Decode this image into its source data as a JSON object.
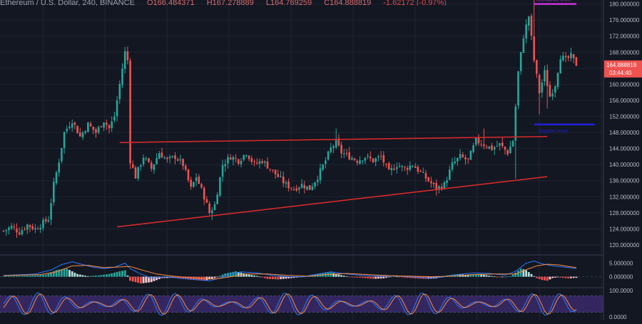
{
  "header": {
    "symbol": "Ethereum / U.S. Dollar, 240, BINANCE",
    "open": "O166.484371",
    "high": "H167.278889",
    "low": "L164.769259",
    "close": "C164.888819",
    "change": "-1.62172 (-0.97%)"
  },
  "colors": {
    "background": "#131722",
    "grid": "#1f2433",
    "candle_up": "#26a69a",
    "candle_down": "#ef5350",
    "trendline": "#d42a2a",
    "resistance": "#c832e0",
    "support": "#1f1fd6",
    "price_tag": "#ef5350",
    "macd_line": "#2979ff",
    "signal_line": "#ff8a3d",
    "stoch_k": "#2979ff",
    "stoch_d": "#ff8a3d",
    "stoch_band": "#3b2a6b"
  },
  "chart_data": {
    "type": "candlestick",
    "title": "Ethereum / U.S. Dollar, 240, BINANCE",
    "y_axis": {
      "range": [
        117.5,
        181.0
      ],
      "ticks": [
        "180.000000",
        "176.000000",
        "172.000000",
        "168.000000",
        "164.000000",
        "160.000000",
        "156.000000",
        "152.000000",
        "148.000000",
        "144.000000",
        "140.000000",
        "136.000000",
        "132.000000",
        "128.000000",
        "124.000000",
        "120.000000"
      ]
    },
    "last_price": "164.888819",
    "countdown": "03:44:40",
    "price_path": [
      [
        0,
        123.5
      ],
      [
        3,
        124.5
      ],
      [
        6,
        123.2
      ],
      [
        9,
        125.0
      ],
      [
        12,
        124.0
      ],
      [
        15,
        125.5
      ],
      [
        17,
        126.5
      ],
      [
        19,
        135
      ],
      [
        21,
        141
      ],
      [
        23,
        148
      ],
      [
        26,
        151
      ],
      [
        29,
        147
      ],
      [
        32,
        150
      ],
      [
        35,
        148
      ],
      [
        38,
        151
      ],
      [
        40,
        149
      ],
      [
        42,
        152
      ],
      [
        44,
        160
      ],
      [
        46,
        168
      ],
      [
        47,
        166
      ],
      [
        48,
        141
      ],
      [
        50,
        137
      ],
      [
        53,
        142
      ],
      [
        56,
        139
      ],
      [
        59,
        143
      ],
      [
        62,
        141
      ],
      [
        65,
        142
      ],
      [
        68,
        140
      ],
      [
        71,
        134
      ],
      [
        73,
        137
      ],
      [
        76,
        132
      ],
      [
        78,
        128
      ],
      [
        80,
        130
      ],
      [
        83,
        140
      ],
      [
        86,
        142
      ],
      [
        89,
        141
      ],
      [
        92,
        143
      ],
      [
        95,
        140
      ],
      [
        98,
        141
      ],
      [
        101,
        139
      ],
      [
        104,
        137
      ],
      [
        107,
        135
      ],
      [
        110,
        134
      ],
      [
        113,
        135
      ],
      [
        116,
        134
      ],
      [
        119,
        137
      ],
      [
        122,
        141
      ],
      [
        124,
        144
      ],
      [
        126,
        145.5
      ],
      [
        128,
        143
      ],
      [
        131,
        142
      ],
      [
        134,
        141
      ],
      [
        137,
        142
      ],
      [
        140,
        141
      ],
      [
        143,
        142
      ],
      [
        146,
        138
      ],
      [
        149,
        140
      ],
      [
        152,
        139
      ],
      [
        155,
        140
      ],
      [
        158,
        138
      ],
      [
        161,
        136
      ],
      [
        164,
        134
      ],
      [
        167,
        135
      ],
      [
        170,
        140
      ],
      [
        173,
        142
      ],
      [
        176,
        141
      ],
      [
        179,
        146
      ],
      [
        182,
        145
      ],
      [
        185,
        144
      ],
      [
        188,
        145
      ],
      [
        191,
        143
      ],
      [
        193,
        146
      ],
      [
        195,
        163
      ],
      [
        197,
        172
      ],
      [
        199,
        177
      ],
      [
        201,
        166
      ],
      [
        203,
        158
      ],
      [
        205,
        163
      ],
      [
        207,
        157
      ],
      [
        209,
        160
      ],
      [
        211,
        167
      ],
      [
        213,
        166
      ],
      [
        215,
        167
      ],
      [
        217,
        165
      ]
    ],
    "spikes": [
      {
        "i": 79,
        "low": 126.2
      },
      {
        "i": 126,
        "high": 149.0
      },
      {
        "i": 182,
        "high": 149.0
      },
      {
        "i": 194,
        "low": 136.5
      },
      {
        "i": 201,
        "high": 181.0
      },
      {
        "i": 203,
        "low": 152.5
      },
      {
        "i": 206,
        "low": 154.0
      }
    ],
    "trendlines": [
      {
        "name": "upper",
        "from": [
          44,
          145.5
        ],
        "to": [
          206,
          147.0
        ]
      },
      {
        "name": "lower",
        "from": [
          43,
          124.5
        ],
        "to": [
          206,
          137.0
        ]
      }
    ],
    "resistance": {
      "label": "resistance level",
      "price": 180.0,
      "from_i": 201,
      "to_i": 217
    },
    "support": {
      "label": "Support level",
      "price": 150.0,
      "from_i": 201,
      "to_i": 224
    },
    "macd": {
      "y_ticks": [
        "5.000000",
        "0.000000"
      ],
      "range": [
        -3.0,
        7.0
      ],
      "histogram_path": [
        [
          0,
          0.2
        ],
        [
          10,
          0.4
        ],
        [
          16,
          0.8
        ],
        [
          20,
          2.5
        ],
        [
          24,
          3.0
        ],
        [
          28,
          1.0
        ],
        [
          32,
          0.2
        ],
        [
          36,
          0.5
        ],
        [
          40,
          1.0
        ],
        [
          44,
          2.0
        ],
        [
          46,
          2.4
        ],
        [
          48,
          -1.5
        ],
        [
          52,
          -2.5
        ],
        [
          56,
          -2.0
        ],
        [
          60,
          -0.5
        ],
        [
          64,
          -0.4
        ],
        [
          68,
          -0.8
        ],
        [
          72,
          -1.2
        ],
        [
          76,
          -1.5
        ],
        [
          80,
          -0.5
        ],
        [
          84,
          1.2
        ],
        [
          88,
          2.0
        ],
        [
          92,
          1.0
        ],
        [
          96,
          0.3
        ],
        [
          100,
          -0.8
        ],
        [
          104,
          -1.0
        ],
        [
          108,
          -0.6
        ],
        [
          112,
          -0.2
        ],
        [
          116,
          0.6
        ],
        [
          120,
          1.2
        ],
        [
          124,
          1.6
        ],
        [
          128,
          0.6
        ],
        [
          132,
          -0.2
        ],
        [
          136,
          -0.4
        ],
        [
          140,
          -0.8
        ],
        [
          144,
          -0.6
        ],
        [
          148,
          0.2
        ],
        [
          152,
          -0.3
        ],
        [
          156,
          -0.6
        ],
        [
          160,
          -0.8
        ],
        [
          164,
          -0.6
        ],
        [
          168,
          0.5
        ],
        [
          172,
          1.0
        ],
        [
          176,
          0.6
        ],
        [
          180,
          1.0
        ],
        [
          184,
          0.4
        ],
        [
          188,
          -0.2
        ],
        [
          192,
          0.2
        ],
        [
          194,
          1.5
        ],
        [
          196,
          3.0
        ],
        [
          198,
          2.4
        ],
        [
          200,
          1.0
        ],
        [
          202,
          -0.5
        ],
        [
          204,
          -1.2
        ],
        [
          206,
          -1.5
        ],
        [
          208,
          -0.5
        ],
        [
          210,
          -0.2
        ],
        [
          212,
          -0.4
        ],
        [
          214,
          -0.6
        ],
        [
          217,
          -0.4
        ]
      ],
      "macd_path": [
        [
          0,
          0.5
        ],
        [
          12,
          1.0
        ],
        [
          18,
          2.5
        ],
        [
          22,
          4.5
        ],
        [
          26,
          5.5
        ],
        [
          30,
          4.5
        ],
        [
          34,
          3.5
        ],
        [
          38,
          3.0
        ],
        [
          42,
          3.5
        ],
        [
          46,
          5.0
        ],
        [
          48,
          3.0
        ],
        [
          52,
          1.0
        ],
        [
          56,
          -0.5
        ],
        [
          62,
          0.0
        ],
        [
          66,
          -0.5
        ],
        [
          72,
          -1.0
        ],
        [
          78,
          -1.5
        ],
        [
          82,
          -0.5
        ],
        [
          86,
          1.0
        ],
        [
          90,
          1.8
        ],
        [
          96,
          1.4
        ],
        [
          102,
          0.5
        ],
        [
          108,
          0.0
        ],
        [
          114,
          0.0
        ],
        [
          118,
          0.8
        ],
        [
          124,
          1.8
        ],
        [
          130,
          1.0
        ],
        [
          136,
          0.5
        ],
        [
          142,
          0.2
        ],
        [
          148,
          0.3
        ],
        [
          154,
          0.0
        ],
        [
          160,
          -0.5
        ],
        [
          166,
          -0.2
        ],
        [
          172,
          0.8
        ],
        [
          178,
          1.4
        ],
        [
          184,
          1.2
        ],
        [
          190,
          0.6
        ],
        [
          194,
          2.0
        ],
        [
          198,
          5.0
        ],
        [
          201,
          5.8
        ],
        [
          204,
          4.8
        ],
        [
          208,
          4.0
        ],
        [
          212,
          3.6
        ],
        [
          217,
          3.0
        ]
      ],
      "signal_path": [
        [
          0,
          0.4
        ],
        [
          14,
          0.8
        ],
        [
          20,
          1.8
        ],
        [
          26,
          4.0
        ],
        [
          32,
          4.2
        ],
        [
          38,
          3.4
        ],
        [
          44,
          3.6
        ],
        [
          48,
          3.8
        ],
        [
          52,
          2.6
        ],
        [
          58,
          1.0
        ],
        [
          64,
          0.2
        ],
        [
          72,
          -0.4
        ],
        [
          80,
          -0.9
        ],
        [
          86,
          0.0
        ],
        [
          92,
          1.0
        ],
        [
          100,
          1.0
        ],
        [
          108,
          0.5
        ],
        [
          116,
          0.2
        ],
        [
          122,
          0.8
        ],
        [
          130,
          1.2
        ],
        [
          138,
          0.8
        ],
        [
          146,
          0.4
        ],
        [
          154,
          0.2
        ],
        [
          162,
          0.0
        ],
        [
          170,
          0.2
        ],
        [
          178,
          0.8
        ],
        [
          186,
          1.0
        ],
        [
          194,
          1.0
        ],
        [
          198,
          2.6
        ],
        [
          202,
          4.0
        ],
        [
          206,
          4.6
        ],
        [
          210,
          4.4
        ],
        [
          214,
          3.8
        ],
        [
          217,
          3.4
        ]
      ]
    },
    "stochastic_rsi": {
      "y_ticks": [
        "100.0000",
        "0.0000"
      ],
      "range": [
        -10,
        110
      ],
      "band": [
        20,
        80
      ],
      "k_period": 5.2,
      "d_period": 5.2,
      "d_phase": 1.0
    }
  }
}
